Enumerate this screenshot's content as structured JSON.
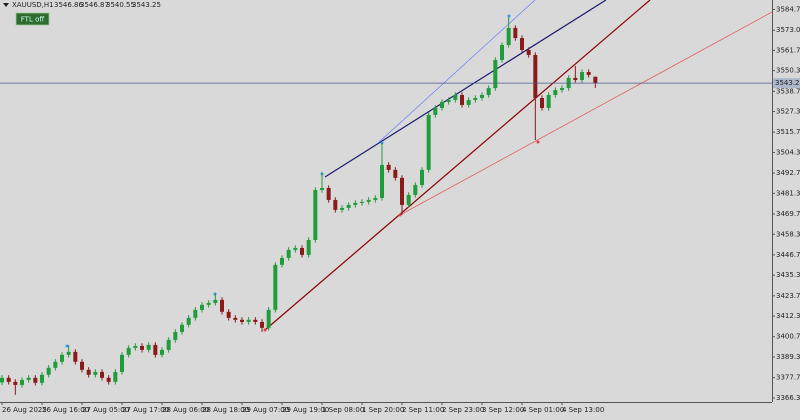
{
  "chart_data": {
    "type": "candlestick",
    "symbol": "XAUUSD,H1",
    "button": "FTL off",
    "up_color": "#1f9d3a",
    "down_color": "#8b1a1a",
    "ylim": [
      3364,
      3590
    ],
    "yticks": [
      {
        "value": 3584.7,
        "label": "3584.70"
      },
      {
        "value": 3573,
        "label": "3573.00"
      },
      {
        "value": 3561.7,
        "label": "3561.70"
      },
      {
        "value": 3550.3,
        "label": "3550.30"
      },
      {
        "value": 3538.7,
        "label": "3538.70"
      },
      {
        "value": 3527.3,
        "label": "3527.30"
      },
      {
        "value": 3515.7,
        "label": "3515.70"
      },
      {
        "value": 3504.3,
        "label": "3504.30"
      },
      {
        "value": 3492.7,
        "label": "3492.70"
      },
      {
        "value": 3481.3,
        "label": "3481.30"
      },
      {
        "value": 3469.7,
        "label": "3469.70"
      },
      {
        "value": 3458.3,
        "label": "3458.30"
      },
      {
        "value": 3446.7,
        "label": "3446.70"
      },
      {
        "value": 3435.3,
        "label": "3435.30"
      },
      {
        "value": 3423.7,
        "label": "3423.70"
      },
      {
        "value": 3412.3,
        "label": "3412.30"
      },
      {
        "value": 3400.7,
        "label": "3400.70"
      },
      {
        "value": 3389.3,
        "label": "3389.30"
      },
      {
        "value": 3377.7,
        "label": "3377.70"
      },
      {
        "value": 3366.3,
        "label": "3366.30"
      }
    ],
    "categories": [
      "26 Aug 2025",
      null,
      null,
      null,
      null,
      null,
      "26 Aug 16:00",
      null,
      null,
      null,
      null,
      null,
      "27 Aug 05:00",
      null,
      null,
      null,
      null,
      null,
      "27 Aug 17:00",
      null,
      null,
      null,
      null,
      null,
      "28 Aug 06:00",
      null,
      null,
      null,
      null,
      null,
      "28 Aug 18:00",
      null,
      null,
      null,
      null,
      null,
      "29 Aug 07:00",
      null,
      null,
      null,
      null,
      null,
      "29 Aug 19:00",
      null,
      null,
      null,
      null,
      null,
      "1 Sep 08:00",
      null,
      null,
      null,
      null,
      null,
      "1 Sep 20:00",
      null,
      null,
      null,
      null,
      null,
      "2 Sep 11:00",
      null,
      null,
      null,
      null,
      null,
      "2 Sep 23:00",
      null,
      null,
      null,
      null,
      null,
      "3 Sep 12:00",
      null,
      null,
      null,
      null,
      null,
      "4 Sep 01:00",
      null,
      null,
      null,
      null,
      null,
      "4 Sep 13:00",
      null,
      null,
      null,
      null,
      null
    ],
    "ohlc": [
      [
        3375.0,
        3379.1,
        3373.5,
        3377.6
      ],
      [
        3377.6,
        3379.1,
        3373.8,
        3375.3
      ],
      [
        3375.3,
        3376.8,
        3368.0,
        3373.6
      ],
      [
        3373.6,
        3377.9,
        3372.1,
        3376.4
      ],
      [
        3376.4,
        3379.1,
        3374.9,
        3377.6
      ],
      [
        3377.6,
        3379.1,
        3373.3,
        3374.8
      ],
      [
        3374.8,
        3380.8,
        3373.3,
        3379.3
      ],
      [
        3379.3,
        3384.7,
        3377.8,
        3383.2
      ],
      [
        3383.2,
        3388.1,
        3381.7,
        3386.6
      ],
      [
        3386.6,
        3392.0,
        3385.1,
        3390.5
      ],
      [
        3390.5,
        3396.1,
        3389.0,
        3392.2
      ],
      [
        3392.2,
        3393.7,
        3385.1,
        3386.6
      ],
      [
        3386.6,
        3388.1,
        3380.6,
        3382.1
      ],
      [
        3382.1,
        3383.6,
        3377.8,
        3379.3
      ],
      [
        3379.3,
        3382.4,
        3377.8,
        3380.9
      ],
      [
        3380.9,
        3382.4,
        3376.1,
        3377.6
      ],
      [
        3377.6,
        3379.1,
        3373.8,
        3375.3
      ],
      [
        3375.3,
        3382.4,
        3373.8,
        3380.9
      ],
      [
        3380.9,
        3392.0,
        3379.4,
        3390.5
      ],
      [
        3390.5,
        3395.9,
        3389.0,
        3394.4
      ],
      [
        3394.4,
        3397.0,
        3392.9,
        3395.5
      ],
      [
        3395.5,
        3397.0,
        3391.8,
        3393.3
      ],
      [
        3393.3,
        3397.6,
        3391.8,
        3396.1
      ],
      [
        3396.1,
        3397.6,
        3389.0,
        3390.5
      ],
      [
        3390.5,
        3394.8,
        3389.0,
        3393.3
      ],
      [
        3393.3,
        3400.4,
        3391.8,
        3398.9
      ],
      [
        3398.9,
        3404.9,
        3397.4,
        3403.4
      ],
      [
        3403.4,
        3408.9,
        3401.9,
        3407.4
      ],
      [
        3407.4,
        3412.8,
        3405.9,
        3411.3
      ],
      [
        3411.3,
        3417.3,
        3409.8,
        3415.8
      ],
      [
        3415.8,
        3420.1,
        3414.3,
        3418.6
      ],
      [
        3418.6,
        3421.2,
        3417.1,
        3419.7
      ],
      [
        3419.7,
        3425.3,
        3418.2,
        3421.4
      ],
      [
        3421.4,
        3422.9,
        3413.2,
        3414.7
      ],
      [
        3414.7,
        3416.2,
        3409.8,
        3411.3
      ],
      [
        3411.3,
        3412.8,
        3408.7,
        3410.2
      ],
      [
        3410.2,
        3411.7,
        3407.5,
        3409.0
      ],
      [
        3409.0,
        3411.7,
        3407.5,
        3410.2
      ],
      [
        3410.2,
        3411.7,
        3407.5,
        3409.0
      ],
      [
        3409.0,
        3410.5,
        3403.4,
        3405.7
      ],
      [
        3405.7,
        3417.3,
        3404.2,
        3415.8
      ],
      [
        3415.8,
        3442.6,
        3414.3,
        3441.1
      ],
      [
        3441.1,
        3446.5,
        3439.6,
        3445.0
      ],
      [
        3445.0,
        3451.0,
        3443.5,
        3449.5
      ],
      [
        3449.5,
        3452.1,
        3448.0,
        3450.6
      ],
      [
        3450.6,
        3452.1,
        3445.2,
        3446.7
      ],
      [
        3446.7,
        3456.6,
        3445.2,
        3455.1
      ],
      [
        3455.1,
        3484.7,
        3453.6,
        3483.2
      ],
      [
        3483.2,
        3493.3,
        3481.7,
        3484.3
      ],
      [
        3484.3,
        3485.8,
        3476.1,
        3477.6
      ],
      [
        3477.6,
        3479.1,
        3470.5,
        3472.0
      ],
      [
        3472.0,
        3474.6,
        3470.5,
        3473.1
      ],
      [
        3473.1,
        3476.3,
        3471.6,
        3474.8
      ],
      [
        3474.8,
        3477.4,
        3473.3,
        3475.9
      ],
      [
        3475.9,
        3478.0,
        3474.4,
        3476.5
      ],
      [
        3476.5,
        3479.1,
        3475.0,
        3477.6
      ],
      [
        3477.6,
        3480.2,
        3476.1,
        3478.7
      ],
      [
        3478.7,
        3509.6,
        3477.2,
        3497.3
      ],
      [
        3497.3,
        3498.8,
        3493.0,
        3494.5
      ],
      [
        3494.5,
        3496.0,
        3488.5,
        3490.0
      ],
      [
        3490.0,
        3491.5,
        3469.2,
        3474.8
      ],
      [
        3474.8,
        3481.9,
        3473.3,
        3480.4
      ],
      [
        3480.4,
        3487.5,
        3478.9,
        3486.0
      ],
      [
        3486.0,
        3496.0,
        3484.5,
        3494.5
      ],
      [
        3494.5,
        3526.9,
        3493.0,
        3525.4
      ],
      [
        3525.4,
        3530.8,
        3523.9,
        3529.3
      ],
      [
        3529.3,
        3534.2,
        3527.8,
        3532.7
      ],
      [
        3532.7,
        3535.3,
        3531.2,
        3533.8
      ],
      [
        3533.8,
        3538.1,
        3532.3,
        3536.6
      ],
      [
        3536.6,
        3538.1,
        3529.5,
        3531.0
      ],
      [
        3531.0,
        3535.3,
        3529.5,
        3533.8
      ],
      [
        3533.8,
        3536.4,
        3532.3,
        3534.9
      ],
      [
        3534.9,
        3538.1,
        3533.4,
        3536.6
      ],
      [
        3536.6,
        3542.0,
        3535.1,
        3540.5
      ],
      [
        3540.5,
        3557.8,
        3539.0,
        3556.3
      ],
      [
        3556.3,
        3566.2,
        3554.8,
        3564.7
      ],
      [
        3564.7,
        3580.4,
        3563.2,
        3574.3
      ],
      [
        3574.3,
        3575.8,
        3567.1,
        3568.6
      ],
      [
        3568.6,
        3570.1,
        3560.4,
        3561.9
      ],
      [
        3561.9,
        3563.4,
        3557.6,
        3559.1
      ],
      [
        3559.1,
        3560.6,
        3511.3,
        3534.9
      ],
      [
        3534.9,
        3536.4,
        3527.8,
        3529.3
      ],
      [
        3529.3,
        3538.1,
        3527.8,
        3536.6
      ],
      [
        3536.6,
        3540.9,
        3535.1,
        3539.4
      ],
      [
        3539.4,
        3542.0,
        3537.9,
        3540.5
      ],
      [
        3540.5,
        3547.7,
        3539.0,
        3546.2
      ],
      [
        3546.2,
        3553.0,
        3543.5,
        3545.0
      ],
      [
        3545.0,
        3551.0,
        3543.5,
        3549.5
      ],
      [
        3549.5,
        3551.0,
        3546.4,
        3547.9
      ],
      [
        3546.86,
        3546.87,
        3540.55,
        3543.25
      ]
    ]
  }
}
